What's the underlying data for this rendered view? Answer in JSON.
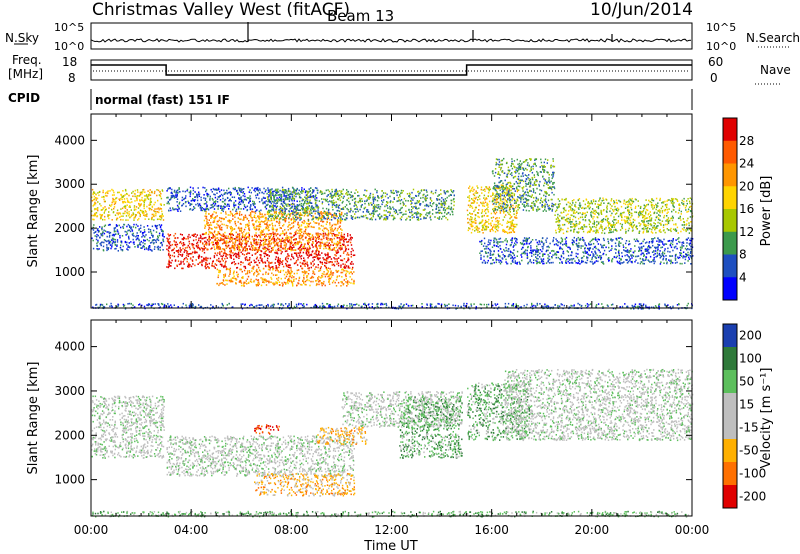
{
  "header": {
    "title": "Christmas Valley West (fitACF)",
    "beam": "Beam 13",
    "date": "10/Jun/2014"
  },
  "params": {
    "nsky_label": "N.Sky",
    "nsearch_label": "N.Search",
    "freq_label_1": "Freq.",
    "freq_label_2": "[MHz]",
    "nave_label": "Nave",
    "cpid_label": "CPID",
    "cpid_value": "normal (fast) 151 IF",
    "noise_ticks_left": [
      "10^5",
      "10^0"
    ],
    "noise_ticks_right": [
      "10^5",
      "10^0"
    ],
    "freq_ticks": [
      "18",
      "8"
    ],
    "nave_ticks": [
      "60",
      "0"
    ],
    "freq_steps": [
      {
        "t": 0.0,
        "mhz": 15.5
      },
      {
        "t": 3.0,
        "mhz": 10.5
      },
      {
        "t": 15.0,
        "mhz": 15.5
      },
      {
        "t": 24.0,
        "mhz": 15.5
      }
    ]
  },
  "chart_data": [
    {
      "type": "heatmap",
      "title": "Power",
      "xlabel": "",
      "ylabel": "Slant Range [km]",
      "x_range_hours": [
        0,
        24
      ],
      "ylim": [
        180,
        4600
      ],
      "y_ticks": [
        1000,
        2000,
        3000,
        4000
      ],
      "colorbar": {
        "label": "Power [dB]",
        "ticks": [
          "28",
          "24",
          "20",
          "16",
          "12",
          "8",
          "4"
        ],
        "colors": [
          "#e00000",
          "#ff5a00",
          "#ff9600",
          "#ffd400",
          "#a8c800",
          "#3c9a4c",
          "#1e4fc0",
          "#0000ff"
        ]
      },
      "scatter_bands": [
        {
          "t0": 0.0,
          "t1": 2.9,
          "r": [
            2200,
            2900
          ],
          "level": 3
        },
        {
          "t0": 0.0,
          "t1": 2.9,
          "r": [
            1500,
            2100
          ],
          "level": 6
        },
        {
          "t0": 3.0,
          "t1": 10.5,
          "r": [
            1100,
            1900
          ],
          "level": 0
        },
        {
          "t0": 4.5,
          "t1": 10.0,
          "r": [
            1500,
            2400
          ],
          "level": 2
        },
        {
          "t0": 5.0,
          "t1": 10.5,
          "r": [
            700,
            1100
          ],
          "level": 2
        },
        {
          "t0": 3.0,
          "t1": 9.0,
          "r": [
            2400,
            2950
          ],
          "level": 6
        },
        {
          "t0": 7.0,
          "t1": 14.5,
          "r": [
            2200,
            2900
          ],
          "level": 5
        },
        {
          "t0": 15.0,
          "t1": 17.0,
          "r": [
            1900,
            3000
          ],
          "level": 3
        },
        {
          "t0": 16.0,
          "t1": 18.5,
          "r": [
            2400,
            3600
          ],
          "level": 5
        },
        {
          "t0": 18.5,
          "t1": 24.0,
          "r": [
            1900,
            2700
          ],
          "level": 4
        },
        {
          "t0": 15.5,
          "t1": 24.0,
          "r": [
            1200,
            1800
          ],
          "level": 6
        },
        {
          "t0": 0.0,
          "t1": 24.0,
          "r": [
            180,
            300
          ],
          "level": 6
        }
      ]
    },
    {
      "type": "heatmap",
      "title": "Velocity",
      "xlabel": "Time UT",
      "ylabel": "Slant Range [km]",
      "x_range_hours": [
        0,
        24
      ],
      "x_ticks": [
        "00:00",
        "04:00",
        "08:00",
        "12:00",
        "16:00",
        "20:00",
        "00:00"
      ],
      "ylim": [
        180,
        4600
      ],
      "y_ticks": [
        1000,
        2000,
        3000,
        4000
      ],
      "colorbar": {
        "label": "Velocity [m s⁻¹]",
        "ticks": [
          "200",
          "100",
          "50",
          "15",
          "-15",
          "-50",
          "-100",
          "-200"
        ],
        "colors": [
          "#1a3fb0",
          "#2f7a3a",
          "#5cbf5c",
          "#bfbfbf",
          "#bfbfbf",
          "#ffb000",
          "#ff7000",
          "#e00000"
        ]
      },
      "scatter_bands": [
        {
          "t0": 0.0,
          "t1": 2.9,
          "r": [
            1500,
            2900
          ],
          "level": 3
        },
        {
          "t0": 3.0,
          "t1": 10.5,
          "r": [
            1100,
            2000
          ],
          "level": 3
        },
        {
          "t0": 6.5,
          "t1": 10.5,
          "r": [
            650,
            1150
          ],
          "level": 5
        },
        {
          "t0": 6.5,
          "t1": 7.5,
          "r": [
            2050,
            2250
          ],
          "level": 7
        },
        {
          "t0": 9.0,
          "t1": 11.0,
          "r": [
            1800,
            2200
          ],
          "level": 5
        },
        {
          "t0": 10.0,
          "t1": 14.8,
          "r": [
            2200,
            3000
          ],
          "level": 3
        },
        {
          "t0": 12.3,
          "t1": 14.8,
          "r": [
            1500,
            2900
          ],
          "level": 2
        },
        {
          "t0": 15.0,
          "t1": 17.5,
          "r": [
            1900,
            3200
          ],
          "level": 2
        },
        {
          "t0": 16.5,
          "t1": 24.0,
          "r": [
            1900,
            3500
          ],
          "level": 3
        },
        {
          "t0": 0.0,
          "t1": 24.0,
          "r": [
            180,
            300
          ],
          "level": 2
        }
      ]
    }
  ]
}
